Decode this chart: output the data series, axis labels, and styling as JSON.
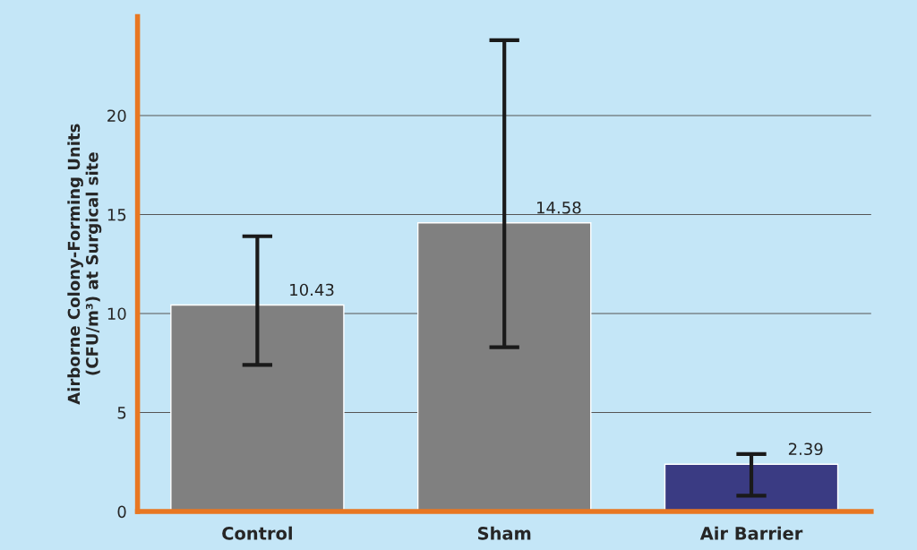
{
  "chart_data": {
    "type": "bar",
    "ylabel": "Airborne Colony-Forming Units\n(CFU/m³) at Surgical site",
    "categories": [
      "Control",
      "Sham",
      "Air Barrier"
    ],
    "values": [
      10.43,
      14.58,
      2.39
    ],
    "colors": [
      "#808080",
      "#808080",
      "#2e2f8f"
    ],
    "errors": [
      [
        7.4,
        13.9
      ],
      [
        8.3,
        23.8
      ],
      [
        0.8,
        2.9
      ]
    ],
    "data_labels": true,
    "ylim": [
      0,
      25
    ],
    "yticks": [
      0,
      5,
      10,
      15,
      20
    ],
    "grid": "y"
  }
}
